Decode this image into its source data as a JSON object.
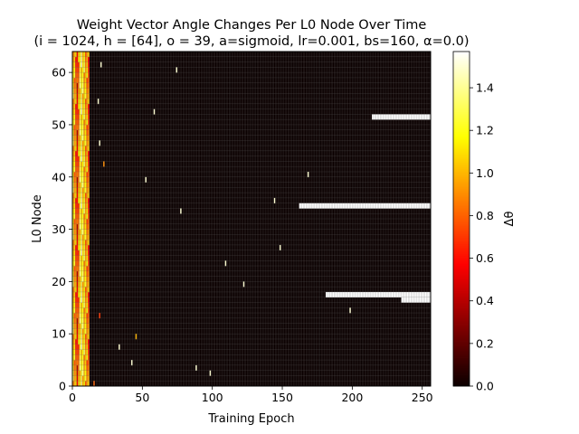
{
  "chart_data": {
    "type": "heatmap",
    "title_line1": "Weight Vector Angle Changes Per L0 Node Over Time",
    "title_line2": "(i = 1024, h = [64], o = 39, a=sigmoid, lr=0.001, bs=160, α=0.0)",
    "xlabel": "Training Epoch",
    "ylabel": "L0 Node",
    "colorbar_label": "Δθ",
    "xlim": [
      0,
      256
    ],
    "ylim": [
      0,
      64
    ],
    "xticks": [
      0,
      50,
      100,
      150,
      200,
      250
    ],
    "yticks": [
      0,
      10,
      20,
      30,
      40,
      50,
      60
    ],
    "colorbar_ticks": [
      0.0,
      0.2,
      0.4,
      0.6,
      0.8,
      1.0,
      1.2,
      1.4
    ],
    "colorbar_range": [
      0.0,
      1.57
    ],
    "colormap": "hot",
    "background_value": 0.0,
    "early_band_epochs": [
      0,
      12
    ],
    "early_band_column_values": [
      1.1,
      1.0,
      0.85,
      0.6,
      0.9,
      1.2,
      1.25,
      1.15,
      1.1,
      1.0,
      0.95,
      0.8
    ],
    "sparse_spikes": [
      {
        "epoch": 20,
        "node": 61,
        "value": 1.5
      },
      {
        "epoch": 74,
        "node": 60,
        "value": 1.5
      },
      {
        "epoch": 18,
        "node": 54,
        "value": 1.5
      },
      {
        "epoch": 58,
        "node": 52,
        "value": 1.5
      },
      {
        "epoch": 19,
        "node": 46,
        "value": 1.5
      },
      {
        "epoch": 22,
        "node": 42,
        "value": 0.9
      },
      {
        "epoch": 168,
        "node": 40,
        "value": 1.5
      },
      {
        "epoch": 52,
        "node": 39,
        "value": 1.5
      },
      {
        "epoch": 144,
        "node": 35,
        "value": 1.5
      },
      {
        "epoch": 77,
        "node": 33,
        "value": 1.5
      },
      {
        "epoch": 148,
        "node": 26,
        "value": 1.5
      },
      {
        "epoch": 109,
        "node": 23,
        "value": 1.5
      },
      {
        "epoch": 122,
        "node": 19,
        "value": 1.5
      },
      {
        "epoch": 198,
        "node": 14,
        "value": 1.5
      },
      {
        "epoch": 19,
        "node": 13,
        "value": 0.7
      },
      {
        "epoch": 45,
        "node": 9,
        "value": 1.0
      },
      {
        "epoch": 33,
        "node": 7,
        "value": 1.5
      },
      {
        "epoch": 42,
        "node": 4,
        "value": 1.5
      },
      {
        "epoch": 88,
        "node": 3,
        "value": 1.5
      },
      {
        "epoch": 98,
        "node": 2,
        "value": 1.5
      },
      {
        "epoch": 15,
        "node": 0,
        "value": 0.8
      }
    ],
    "saturated_runs": [
      {
        "node": 51,
        "from_epoch": 214,
        "to_epoch": 256,
        "value": 1.57
      },
      {
        "node": 34,
        "from_epoch": 162,
        "to_epoch": 256,
        "value": 1.57
      },
      {
        "node": 17,
        "from_epoch": 181,
        "to_epoch": 256,
        "value": 1.57
      },
      {
        "node": 16,
        "from_epoch": 235,
        "to_epoch": 256,
        "value": 1.57
      }
    ]
  }
}
